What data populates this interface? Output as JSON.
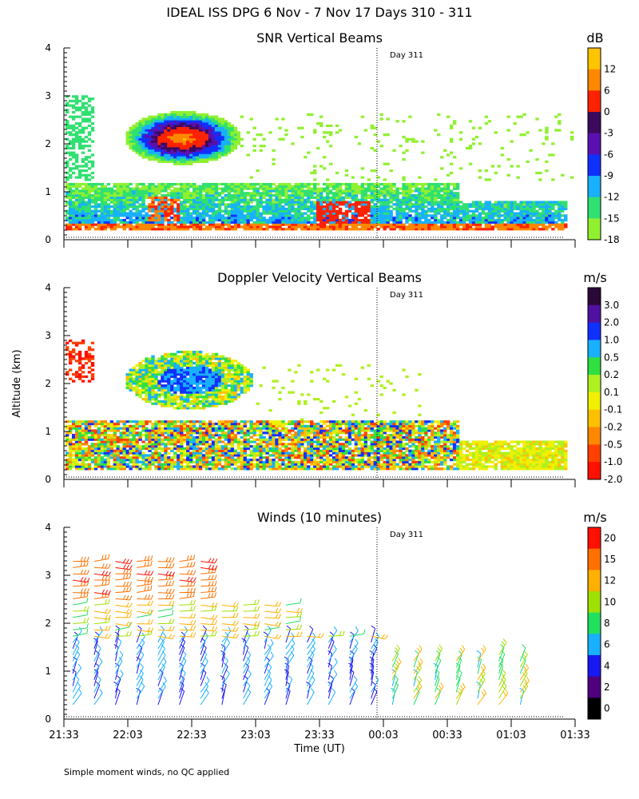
{
  "header": {
    "main_title": "IDEAL ISS DPG   6 Nov -  7 Nov 17 Days 310 - 311"
  },
  "footer": {
    "note": "Simple moment winds, no QC applied"
  },
  "shared": {
    "ylabel": "Altitude (km)",
    "xlabel": "Time (UT)",
    "day_marker_label": "Day 311",
    "day_marker_time_h": 24.0,
    "x_range_h": [
      21.55,
      25.55
    ],
    "y_range_km": [
      0,
      4
    ],
    "y_ticks": [
      "0",
      "1",
      "2",
      "3",
      "4"
    ],
    "x_tick_values_h": [
      21.55,
      22.05,
      22.55,
      23.05,
      23.55,
      24.05,
      24.55,
      25.05,
      25.55
    ],
    "x_tick_labels": [
      "21:33",
      "22:03",
      "22:33",
      "23:03",
      "23:33",
      "00:03",
      "00:33",
      "01:03",
      "01:33"
    ]
  },
  "chart_data": [
    {
      "type": "heatmap",
      "title": "SNR Vertical Beams",
      "units": "dB",
      "colorbar_labels": [
        "12",
        "6",
        "0",
        "-3",
        "-6",
        "-9",
        "-12",
        "-15",
        "-18"
      ],
      "colorbar_colors": [
        "#ffc400",
        "#ff8800",
        "#ff2200",
        "#3c0a5c",
        "#5a10b0",
        "#1030ff",
        "#18b0ff",
        "#30e070",
        "#90f030"
      ],
      "ylim": [
        0,
        4
      ]
    },
    {
      "type": "heatmap",
      "title": "Doppler Velocity Vertical Beams",
      "units": "m/s",
      "colorbar_labels": [
        "3.0",
        "2.0",
        "1.0",
        "0.5",
        "0.2",
        "0.1",
        "-0.1",
        "-0.2",
        "-0.5",
        "-1.0",
        "-2.0"
      ],
      "colorbar_colors": [
        "#2a0838",
        "#5010a0",
        "#1030ff",
        "#18b0ff",
        "#30e040",
        "#b0f020",
        "#f0f000",
        "#ffc000",
        "#ff8800",
        "#ff4000",
        "#ff1000"
      ],
      "ylim": [
        0,
        4
      ]
    },
    {
      "type": "scatter",
      "title": "Winds (10 minutes)",
      "units": "m/s",
      "colorbar_labels": [
        "20",
        "15",
        "12",
        "10",
        "8",
        "6",
        "4",
        "2",
        "0"
      ],
      "colorbar_colors": [
        "#ff1000",
        "#ff7000",
        "#ffb000",
        "#a0e000",
        "#20e060",
        "#18b0ff",
        "#1818f0",
        "#500080",
        "#000000"
      ],
      "ylim": [
        0,
        4
      ]
    }
  ],
  "colors": {
    "snr": {
      "white": "#ffffff",
      "s18": "#90f030",
      "s15": "#30e070",
      "s12": "#18b0ff",
      "s9": "#1030ff",
      "s6": "#5a10b0",
      "s3": "#3c0a5c",
      "s0": "#ff2200",
      "s6p": "#ff8800",
      "s12p": "#ffc400"
    },
    "vel": {
      "v3": "#2a0838",
      "v2": "#5010a0",
      "v1": "#1030ff",
      "v05": "#18b0ff",
      "v02": "#30e040",
      "v01": "#b0f020",
      "vm01": "#f0f000",
      "vm02": "#ffc000",
      "vm05": "#ff8800",
      "vm1": "#ff4000",
      "vm2": "#ff1000"
    }
  }
}
